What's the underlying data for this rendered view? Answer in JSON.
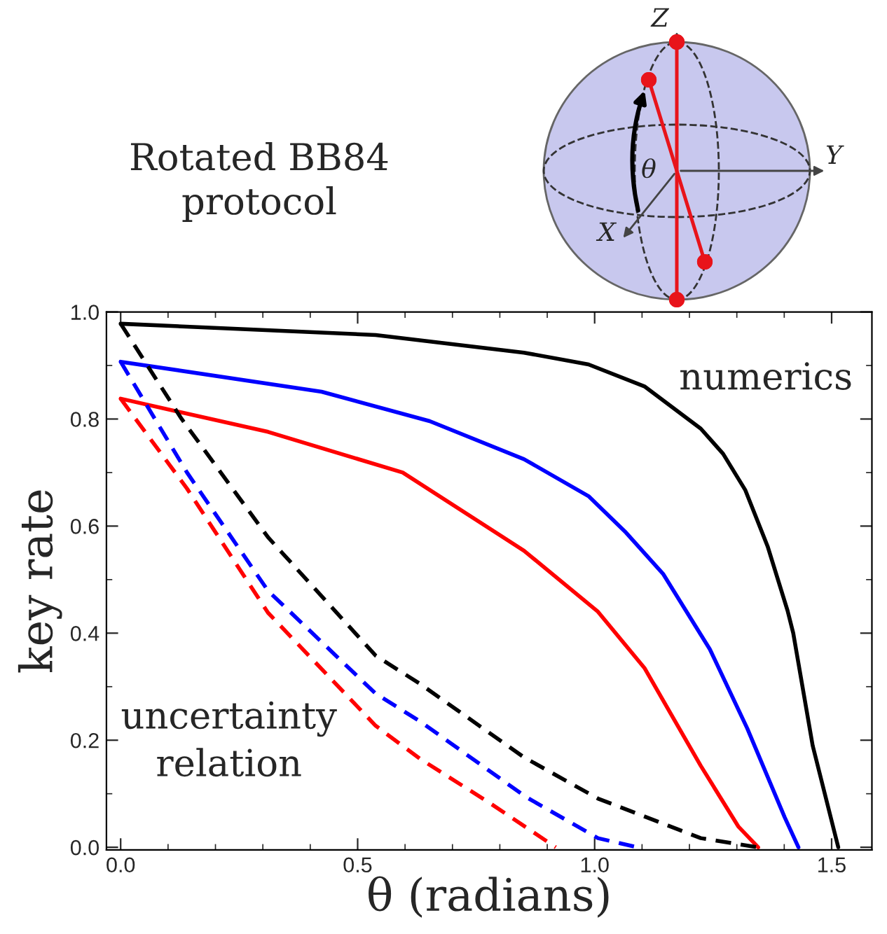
{
  "chart_data": {
    "type": "line",
    "title": "Rotated BB84\nprotocol",
    "xlabel": "θ (radians)",
    "ylabel": "key rate",
    "annotations": [
      "numerics",
      "uncertainty\nrelation",
      "Z",
      "Y",
      "X",
      "θ"
    ],
    "series": [
      {
        "color": "#000000",
        "line_style": "solid",
        "x": [
          0,
          0.538,
          0.851,
          0.987,
          1.105,
          1.224,
          1.271,
          1.318,
          1.365,
          1.407,
          1.419,
          1.46,
          1.514
        ],
        "values": [
          0.978,
          0.957,
          0.924,
          0.902,
          0.861,
          0.782,
          0.735,
          0.667,
          0.562,
          0.442,
          0.4,
          0.19,
          0.0
        ]
      },
      {
        "color": "#0000ff",
        "line_style": "solid",
        "x": [
          0,
          0.424,
          0.652,
          0.851,
          0.987,
          1.066,
          1.145,
          1.243,
          1.322,
          1.401,
          1.43
        ],
        "values": [
          0.907,
          0.851,
          0.796,
          0.725,
          0.656,
          0.588,
          0.51,
          0.37,
          0.222,
          0.056,
          0.0
        ]
      },
      {
        "color": "#ff0000",
        "line_style": "solid",
        "x": [
          0,
          0.311,
          0.595,
          0.851,
          1.007,
          1.105,
          1.224,
          1.303,
          1.345
        ],
        "values": [
          0.838,
          0.776,
          0.7,
          0.554,
          0.44,
          0.335,
          0.152,
          0.039,
          0.0
        ]
      },
      {
        "color": "#000000",
        "line_style": "dashed",
        "x": [
          0,
          0.128,
          0.311,
          0.538,
          0.632,
          0.851,
          1.007,
          1.224,
          1.345
        ],
        "values": [
          0.978,
          0.801,
          0.579,
          0.358,
          0.305,
          0.168,
          0.091,
          0.017,
          0.0
        ]
      },
      {
        "color": "#0000ff",
        "line_style": "dashed",
        "x": [
          0,
          0.14,
          0.311,
          0.538,
          0.632,
          0.855,
          1.007,
          1.09
        ],
        "values": [
          0.907,
          0.7,
          0.479,
          0.287,
          0.235,
          0.094,
          0.017,
          0.0
        ]
      },
      {
        "color": "#ff0000",
        "line_style": "dashed",
        "x": [
          0,
          0.14,
          0.311,
          0.538,
          0.632,
          0.78,
          0.918
        ],
        "values": [
          0.838,
          0.67,
          0.438,
          0.227,
          0.165,
          0.082,
          0.0
        ]
      }
    ],
    "xlim": [
      -0.03,
      1.585
    ],
    "ylim": [
      -0.005,
      1.0
    ],
    "xticks": [
      {
        "value": 0,
        "label": "0.0"
      },
      0.5,
      {
        "value": 1,
        "label": "1.0"
      },
      1.5
    ],
    "yticks": [
      {
        "value": 0,
        "label": "0.0"
      },
      0.2,
      0.4,
      0.6,
      0.8,
      {
        "value": 1,
        "label": "1.0"
      }
    ],
    "grid": false,
    "legend": false,
    "marker": "none"
  }
}
